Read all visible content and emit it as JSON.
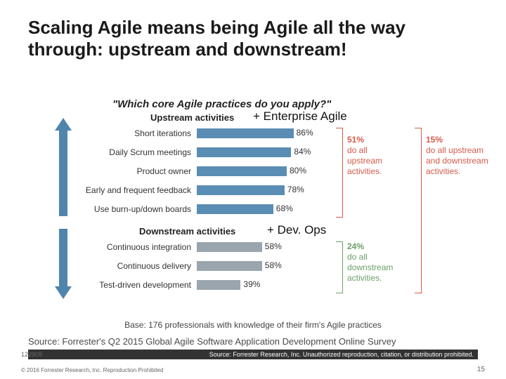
{
  "title": "Scaling Agile means being Agile all the way through: upstream and downstream!",
  "survey_question": "\"Which core Agile practices do you apply?\"",
  "colors": {
    "upstream_bar": "#5a8db3",
    "downstream_bar": "#9aa5ad",
    "arrow": "#4f84ad",
    "bracket1": "#d65a4a",
    "bracket2": "#6aa06a",
    "bracket3": "#d65a4a"
  },
  "upstream": {
    "header": "Upstream activities",
    "overlay": "+ Enterprise Agile",
    "maxpct": 100,
    "rows": [
      {
        "label": "Short iterations",
        "pct": 86
      },
      {
        "label": "Daily Scrum meetings",
        "pct": 84
      },
      {
        "label": "Product owner",
        "pct": 80
      },
      {
        "label": "Early and frequent feedback",
        "pct": 78
      },
      {
        "label": "Use burn-up/down boards",
        "pct": 68
      }
    ]
  },
  "downstream": {
    "header": "Downstream activities",
    "overlay": "+ Dev. Ops",
    "maxpct": 100,
    "rows": [
      {
        "label": "Continuous integration",
        "pct": 58
      },
      {
        "label": "Continuous delivery",
        "pct": 58
      },
      {
        "label": "Test-driven development",
        "pct": 39
      }
    ]
  },
  "callouts": {
    "upstream": {
      "pct": "51%",
      "text": "do all upstream activities."
    },
    "downstream": {
      "pct": "24%",
      "text": "do all downstream activities."
    },
    "both": {
      "pct": "15%",
      "text": "do all upstream and downstream activities."
    }
  },
  "base": "Base: 176 professionals with knowledge of their firm's Agile practices",
  "source": "Source: Forrester's Q2 2015 Global Agile Software Application Development Online Survey",
  "copyright_bar": "Source: Forrester Research, Inc. Unauthorized reproduction, citation, or distribution prohibited.",
  "footer_left": "© 2016 Forrester Research, Inc. Reproduction Prohibited",
  "footer_id": "122909",
  "page_num": "15"
}
